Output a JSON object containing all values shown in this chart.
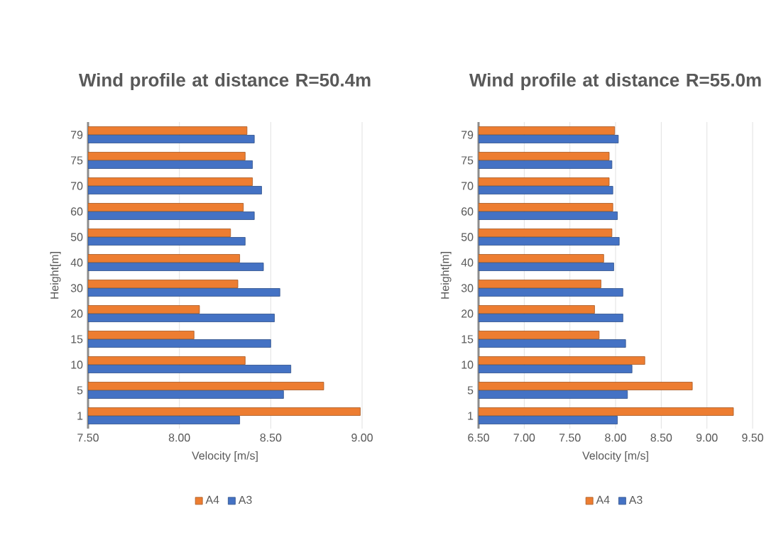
{
  "chart_data": [
    {
      "type": "bar",
      "orientation": "horizontal",
      "title": "Wind profile at distance R=50.4m",
      "xlabel": "Velocity [m/s]",
      "ylabel": "Height[m]",
      "categories": [
        "79",
        "75",
        "70",
        "60",
        "50",
        "40",
        "30",
        "20",
        "15",
        "10",
        "5",
        "1"
      ],
      "series": [
        {
          "name": "A4",
          "color": "#ed7d31",
          "values": [
            8.37,
            8.36,
            8.4,
            8.35,
            8.28,
            8.33,
            8.32,
            8.11,
            8.08,
            8.36,
            8.79,
            8.99
          ]
        },
        {
          "name": "A3",
          "color": "#4472c4",
          "values": [
            8.41,
            8.4,
            8.45,
            8.41,
            8.36,
            8.46,
            8.55,
            8.52,
            8.5,
            8.61,
            8.57,
            8.33
          ]
        }
      ],
      "xlim": [
        7.5,
        9.0
      ],
      "xticks": [
        {
          "value": 7.5,
          "label": "7.50"
        },
        {
          "value": 8.0,
          "label": "8.00"
        },
        {
          "value": 8.5,
          "label": "8.50"
        },
        {
          "value": 9.0,
          "label": "9.00"
        }
      ],
      "grid": "x",
      "legend": "bottom"
    },
    {
      "type": "bar",
      "orientation": "horizontal",
      "title": "Wind profile at distance R=55.0m",
      "xlabel": "Velocity [m/s]",
      "ylabel": "Height[m]",
      "categories": [
        "79",
        "75",
        "70",
        "60",
        "50",
        "40",
        "30",
        "20",
        "15",
        "10",
        "5",
        "1"
      ],
      "series": [
        {
          "name": "A4",
          "color": "#ed7d31",
          "values": [
            7.99,
            7.93,
            7.93,
            7.97,
            7.96,
            7.87,
            7.84,
            7.77,
            7.82,
            8.32,
            8.84,
            9.29
          ]
        },
        {
          "name": "A3",
          "color": "#4472c4",
          "values": [
            8.03,
            7.96,
            7.97,
            8.02,
            8.04,
            7.98,
            8.08,
            8.08,
            8.11,
            8.18,
            8.13,
            8.02
          ]
        }
      ],
      "xlim": [
        6.5,
        9.5
      ],
      "xticks": [
        {
          "value": 6.5,
          "label": "6.50"
        },
        {
          "value": 7.0,
          "label": "7.00"
        },
        {
          "value": 7.5,
          "label": "7.50"
        },
        {
          "value": 8.0,
          "label": "8.00"
        },
        {
          "value": 8.5,
          "label": "8.50"
        },
        {
          "value": 9.0,
          "label": "9.00"
        },
        {
          "value": 9.5,
          "label": "9.50"
        }
      ],
      "grid": "x",
      "legend": "bottom"
    }
  ]
}
